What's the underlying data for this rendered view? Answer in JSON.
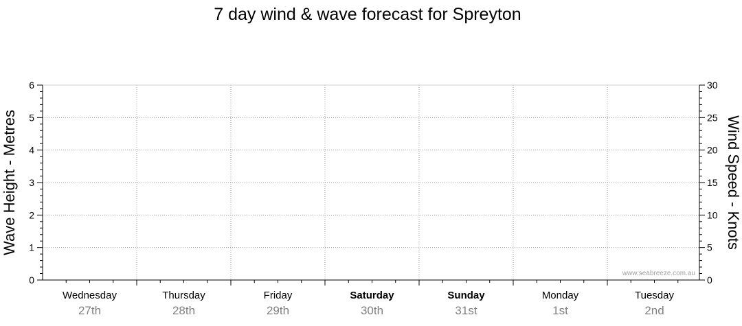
{
  "chart_data": {
    "type": "line",
    "title": "7 day wind & wave forecast for Spreyton",
    "ylabel_left": "Wave Height - Metres",
    "ylabel_right": "Wind Speed - Knots",
    "ylim_left": [
      0,
      6
    ],
    "ylim_right": [
      0,
      30
    ],
    "yticks_left": [
      "0",
      "1",
      "2",
      "3",
      "4",
      "5",
      "6"
    ],
    "yticks_right": [
      "0",
      "5",
      "10",
      "15",
      "20",
      "25",
      "30"
    ],
    "grid": true,
    "days": [
      {
        "name": "Wednesday",
        "date": "27th",
        "bold": false
      },
      {
        "name": "Thursday",
        "date": "28th",
        "bold": false
      },
      {
        "name": "Friday",
        "date": "29th",
        "bold": false
      },
      {
        "name": "Saturday",
        "date": "30th",
        "bold": true
      },
      {
        "name": "Sunday",
        "date": "31st",
        "bold": true
      },
      {
        "name": "Monday",
        "date": "1st",
        "bold": false
      },
      {
        "name": "Tuesday",
        "date": "2nd",
        "bold": false
      }
    ],
    "series": [],
    "watermark": "www.seabreeze.com.au"
  }
}
